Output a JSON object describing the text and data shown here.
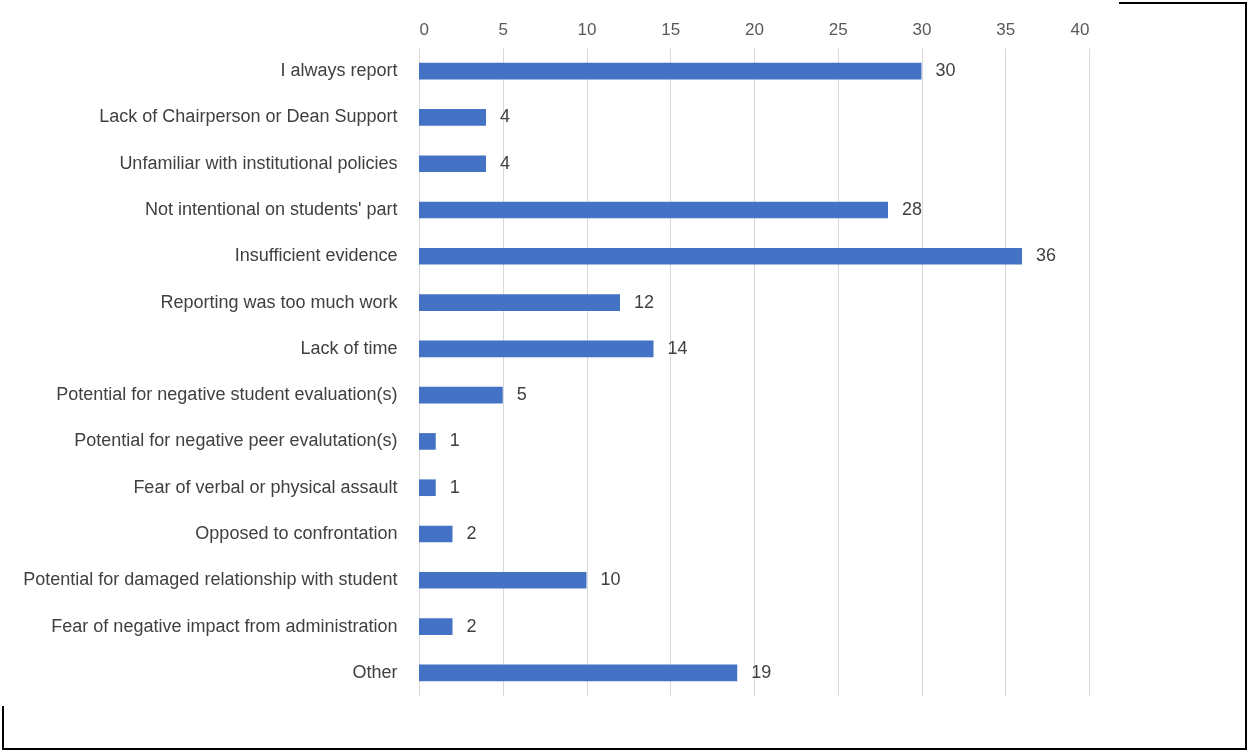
{
  "chart_data": {
    "type": "bar",
    "orientation": "horizontal",
    "categories": [
      "I always report",
      "Lack of Chairperson or Dean Support",
      "Unfamiliar with institutional policies",
      "Not intentional on students' part",
      "Insufficient evidence",
      "Reporting was too much work",
      "Lack of time",
      "Potential for negative student evaluation(s)",
      "Potential for negative peer evalutation(s)",
      "Fear of verbal or physical assault",
      "Opposed to confrontation",
      "Potential for damaged relationship with student",
      "Fear of negative impact from administration",
      "Other"
    ],
    "values": [
      30,
      4,
      4,
      28,
      36,
      12,
      14,
      5,
      1,
      1,
      2,
      10,
      2,
      19
    ],
    "color": "#4472c4",
    "xlim": [
      0,
      40
    ],
    "xticks": [
      0,
      5,
      10,
      15,
      20,
      25,
      30,
      35,
      40
    ],
    "grid": "x",
    "data_labels": true
  }
}
